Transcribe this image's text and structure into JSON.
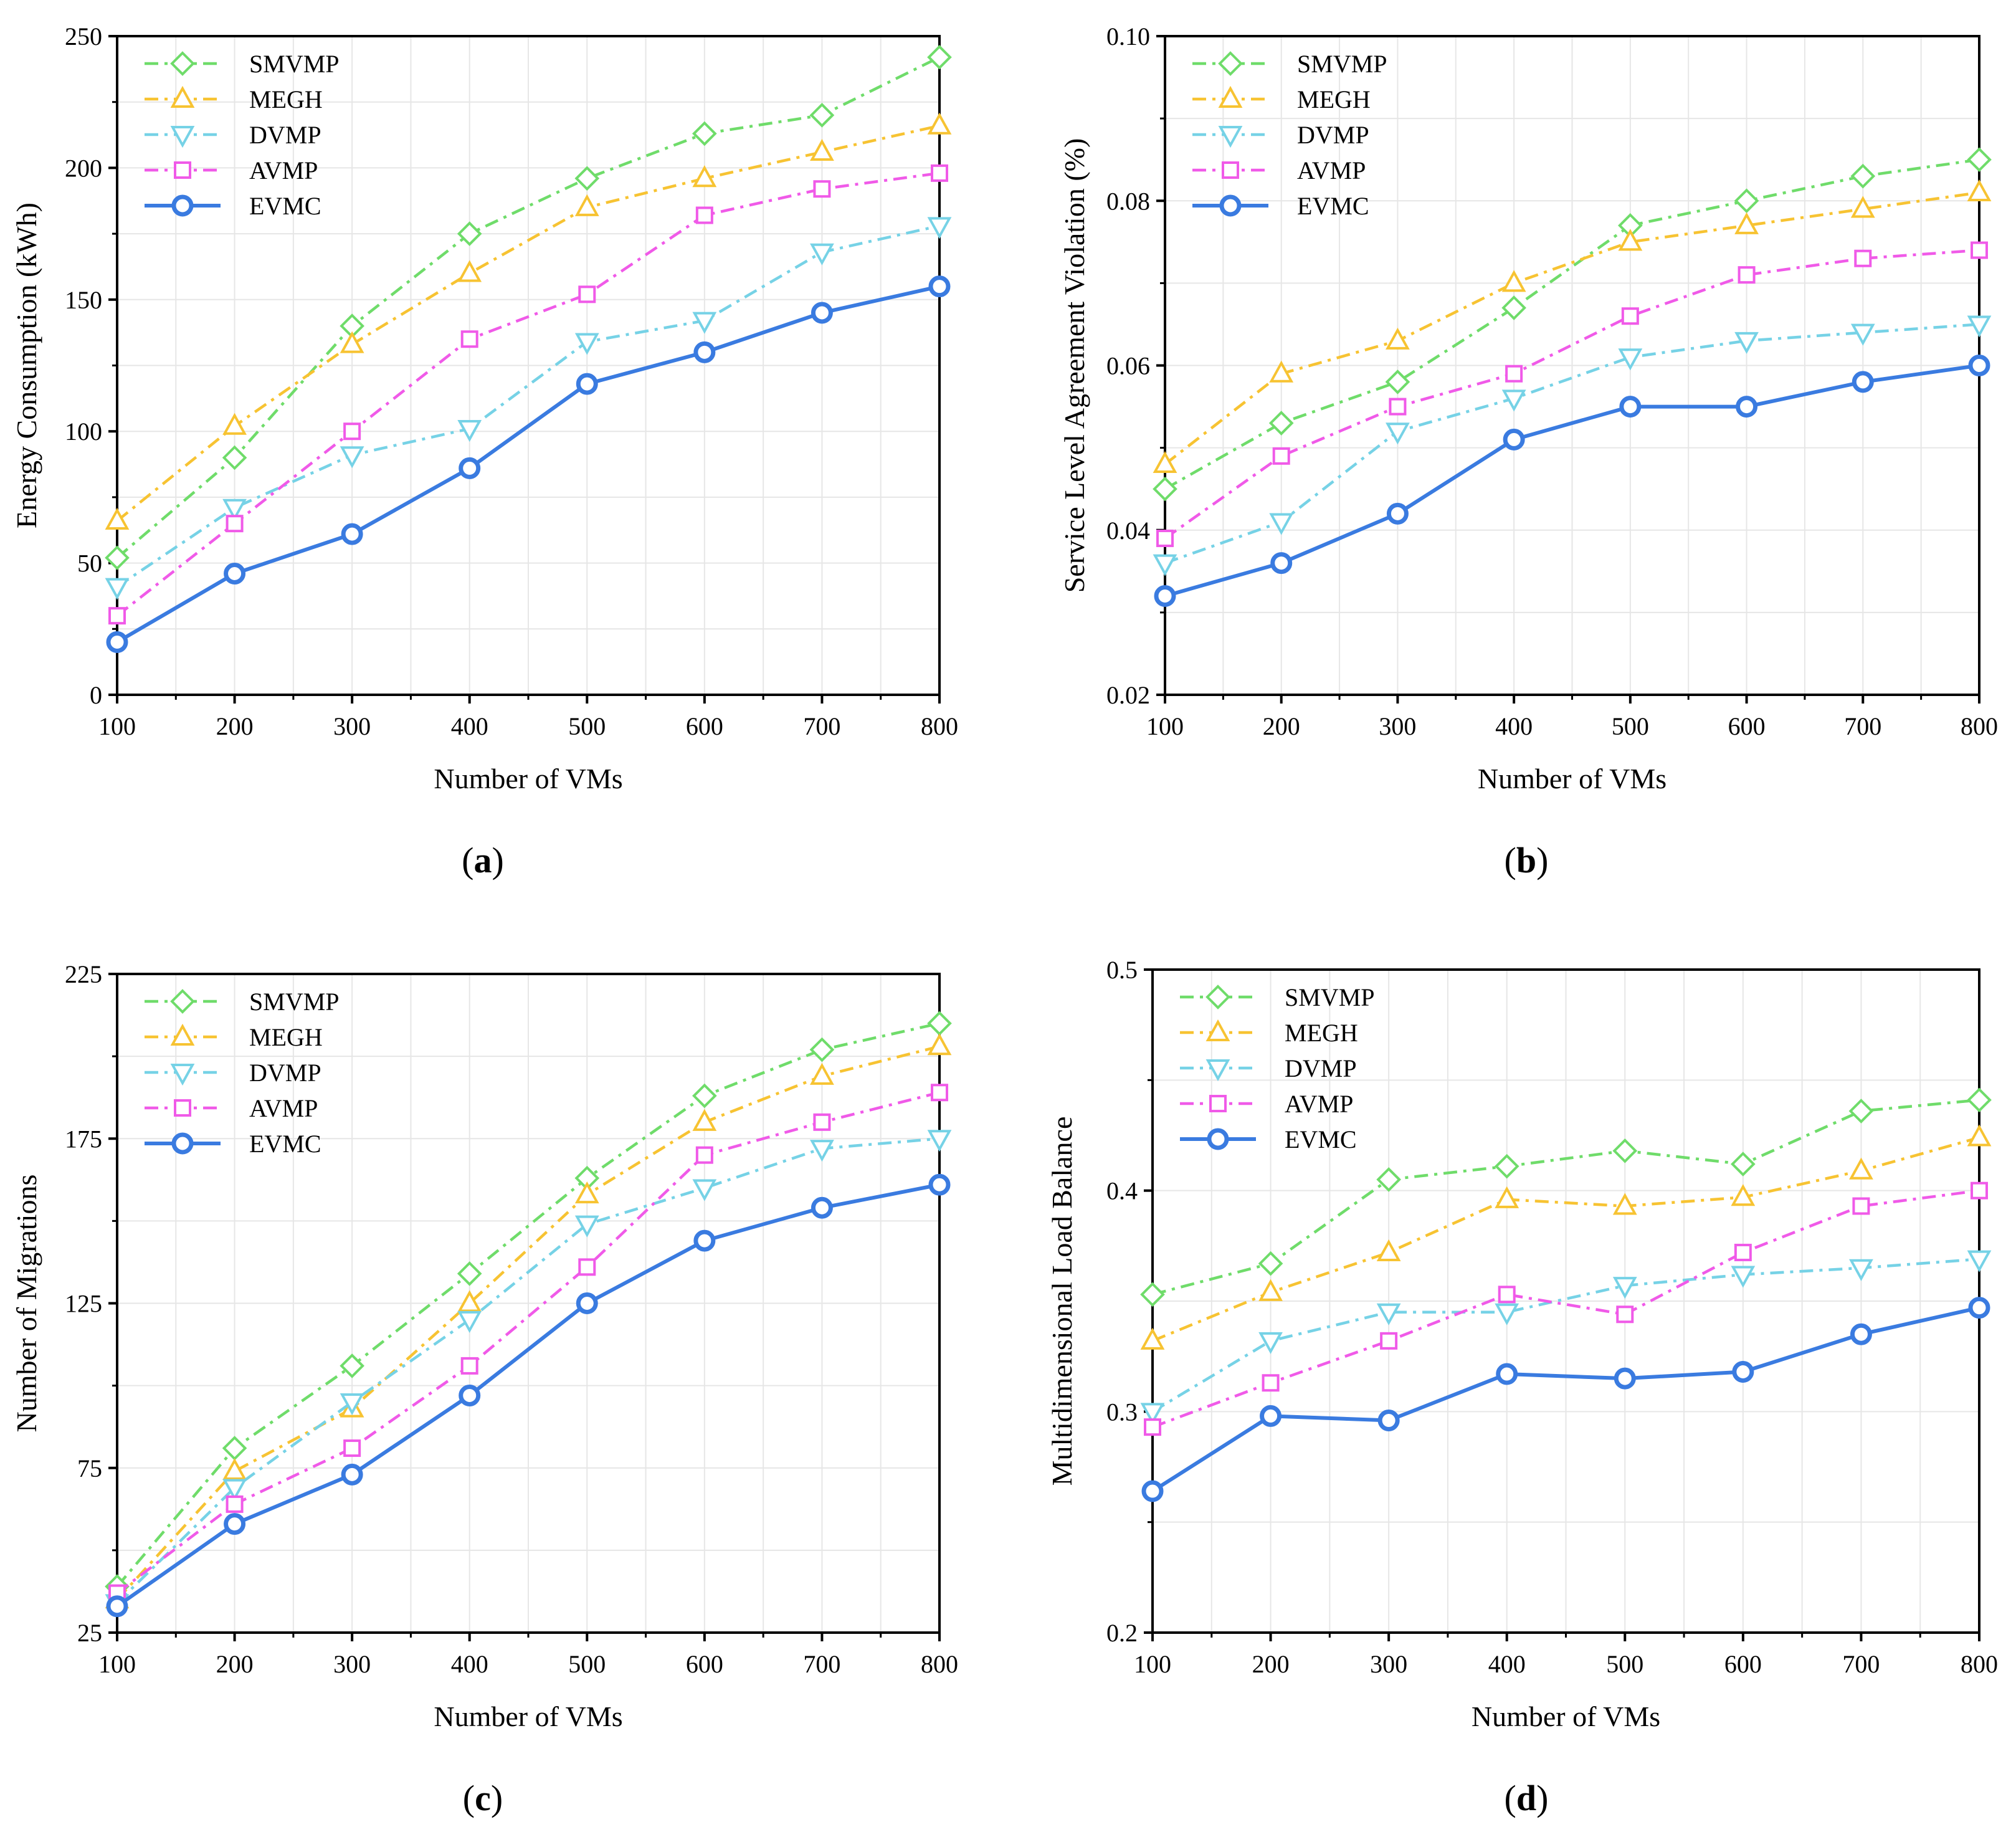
{
  "figure": {
    "colors": {
      "SMVMP": "#6fdc6a",
      "MEGH": "#f7c332",
      "DVMP": "#76d2e6",
      "AVMP": "#f05ae8",
      "EVMC": "#3a7be0"
    }
  },
  "chart_data": [
    {
      "type": "line",
      "panel": "(a)",
      "panel_letter": "a",
      "title": "",
      "xlabel": "Number of VMs",
      "ylabel": "Energy Consumption (kWh)",
      "x": [
        100,
        200,
        300,
        400,
        500,
        600,
        700,
        800
      ],
      "xlim": [
        100,
        800
      ],
      "ylim": [
        0,
        250
      ],
      "yticks": [
        0,
        50,
        100,
        150,
        200,
        250
      ],
      "ytick_labels": [
        "0",
        "50",
        "100",
        "150",
        "200",
        "250"
      ],
      "legend_position": "top-left",
      "series": [
        {
          "name": "SMVMP",
          "marker": "diamond",
          "line": "dashdot",
          "values": [
            52,
            90,
            140,
            175,
            196,
            213,
            220,
            242
          ]
        },
        {
          "name": "MEGH",
          "marker": "triangle-up",
          "line": "dashdot",
          "values": [
            66,
            102,
            133,
            160,
            185,
            196,
            206,
            216
          ]
        },
        {
          "name": "DVMP",
          "marker": "triangle-down",
          "line": "dashdot",
          "values": [
            41,
            71,
            91,
            101,
            134,
            142,
            168,
            178
          ]
        },
        {
          "name": "AVMP",
          "marker": "square",
          "line": "dashdot",
          "values": [
            30,
            65,
            100,
            135,
            152,
            182,
            192,
            198
          ]
        },
        {
          "name": "EVMC",
          "marker": "circle",
          "line": "solid",
          "values": [
            20,
            46,
            61,
            86,
            118,
            130,
            145,
            155
          ]
        }
      ]
    },
    {
      "type": "line",
      "panel": "(b)",
      "panel_letter": "b",
      "title": "",
      "xlabel": "Number of VMs",
      "ylabel": "Service Level Agreement Violation (%)",
      "x": [
        100,
        200,
        300,
        400,
        500,
        600,
        700,
        800
      ],
      "xlim": [
        100,
        800
      ],
      "ylim": [
        0.02,
        0.1
      ],
      "yticks": [
        0.02,
        0.04,
        0.06,
        0.08,
        0.1
      ],
      "ytick_labels": [
        "0.02",
        "0.04",
        "0.06",
        "0.08",
        "0.10"
      ],
      "legend_position": "top-left",
      "series": [
        {
          "name": "SMVMP",
          "marker": "diamond",
          "line": "dashdot",
          "values": [
            0.045,
            0.053,
            0.058,
            0.067,
            0.077,
            0.08,
            0.083,
            0.085
          ]
        },
        {
          "name": "MEGH",
          "marker": "triangle-up",
          "line": "dashdot",
          "values": [
            0.048,
            0.059,
            0.063,
            0.07,
            0.075,
            0.077,
            0.079,
            0.081
          ]
        },
        {
          "name": "DVMP",
          "marker": "triangle-down",
          "line": "dashdot",
          "values": [
            0.036,
            0.041,
            0.052,
            0.056,
            0.061,
            0.063,
            0.064,
            0.065
          ]
        },
        {
          "name": "AVMP",
          "marker": "square",
          "line": "dashdot",
          "values": [
            0.039,
            0.049,
            0.055,
            0.059,
            0.066,
            0.071,
            0.073,
            0.074
          ]
        },
        {
          "name": "EVMC",
          "marker": "circle",
          "line": "solid",
          "values": [
            0.032,
            0.036,
            0.042,
            0.051,
            0.055,
            0.055,
            0.058,
            0.06
          ]
        }
      ]
    },
    {
      "type": "line",
      "panel": "(c)",
      "panel_letter": "c",
      "title": "",
      "xlabel": "Number of VMs",
      "ylabel": "Number of Migrations",
      "x": [
        100,
        200,
        300,
        400,
        500,
        600,
        700,
        800
      ],
      "xlim": [
        100,
        800
      ],
      "ylim": [
        25,
        225
      ],
      "yticks": [
        25,
        75,
        125,
        175,
        225
      ],
      "ytick_labels": [
        "25",
        "75",
        "125",
        "175",
        "225"
      ],
      "legend_position": "top-left",
      "series": [
        {
          "name": "SMVMP",
          "marker": "diamond",
          "line": "dashdot",
          "values": [
            39,
            81,
            106,
            134,
            163,
            188,
            202,
            210
          ]
        },
        {
          "name": "MEGH",
          "marker": "triangle-up",
          "line": "dashdot",
          "values": [
            35,
            74,
            93,
            125,
            158,
            180,
            194,
            203
          ]
        },
        {
          "name": "DVMP",
          "marker": "triangle-down",
          "line": "dashdot",
          "values": [
            34,
            69,
            95,
            120,
            149,
            160,
            172,
            175
          ]
        },
        {
          "name": "AVMP",
          "marker": "square",
          "line": "dashdot",
          "values": [
            37,
            64,
            81,
            106,
            136,
            170,
            180,
            189
          ]
        },
        {
          "name": "EVMC",
          "marker": "circle",
          "line": "solid",
          "values": [
            33,
            58,
            73,
            97,
            125,
            144,
            154,
            161
          ]
        }
      ]
    },
    {
      "type": "line",
      "panel": "(d)",
      "panel_letter": "d",
      "title": "",
      "xlabel": "Number of VMs",
      "ylabel": "Multidimensional Load Balance",
      "x": [
        100,
        200,
        300,
        400,
        500,
        600,
        700,
        800
      ],
      "xlim": [
        100,
        800
      ],
      "ylim": [
        0.2,
        0.5
      ],
      "yticks": [
        0.2,
        0.3,
        0.4,
        0.5
      ],
      "ytick_labels": [
        "0.2",
        "0.3",
        "0.4",
        "0.5"
      ],
      "legend_position": "top-left",
      "series": [
        {
          "name": "SMVMP",
          "marker": "diamond",
          "line": "dashdot",
          "values": [
            0.353,
            0.367,
            0.405,
            0.411,
            0.418,
            0.412,
            0.436,
            0.441
          ]
        },
        {
          "name": "MEGH",
          "marker": "triangle-up",
          "line": "dashdot",
          "values": [
            0.332,
            0.354,
            0.372,
            0.396,
            0.393,
            0.397,
            0.409,
            0.424
          ]
        },
        {
          "name": "DVMP",
          "marker": "triangle-down",
          "line": "dashdot",
          "values": [
            0.3,
            0.332,
            0.345,
            0.345,
            0.357,
            0.362,
            0.365,
            0.369
          ]
        },
        {
          "name": "AVMP",
          "marker": "square",
          "line": "dashdot",
          "values": [
            0.293,
            0.313,
            0.332,
            0.353,
            0.344,
            0.372,
            0.393,
            0.4
          ]
        },
        {
          "name": "EVMC",
          "marker": "circle",
          "line": "solid",
          "values": [
            0.264,
            0.298,
            0.296,
            0.317,
            0.315,
            0.318,
            0.335,
            0.347
          ]
        }
      ]
    }
  ]
}
